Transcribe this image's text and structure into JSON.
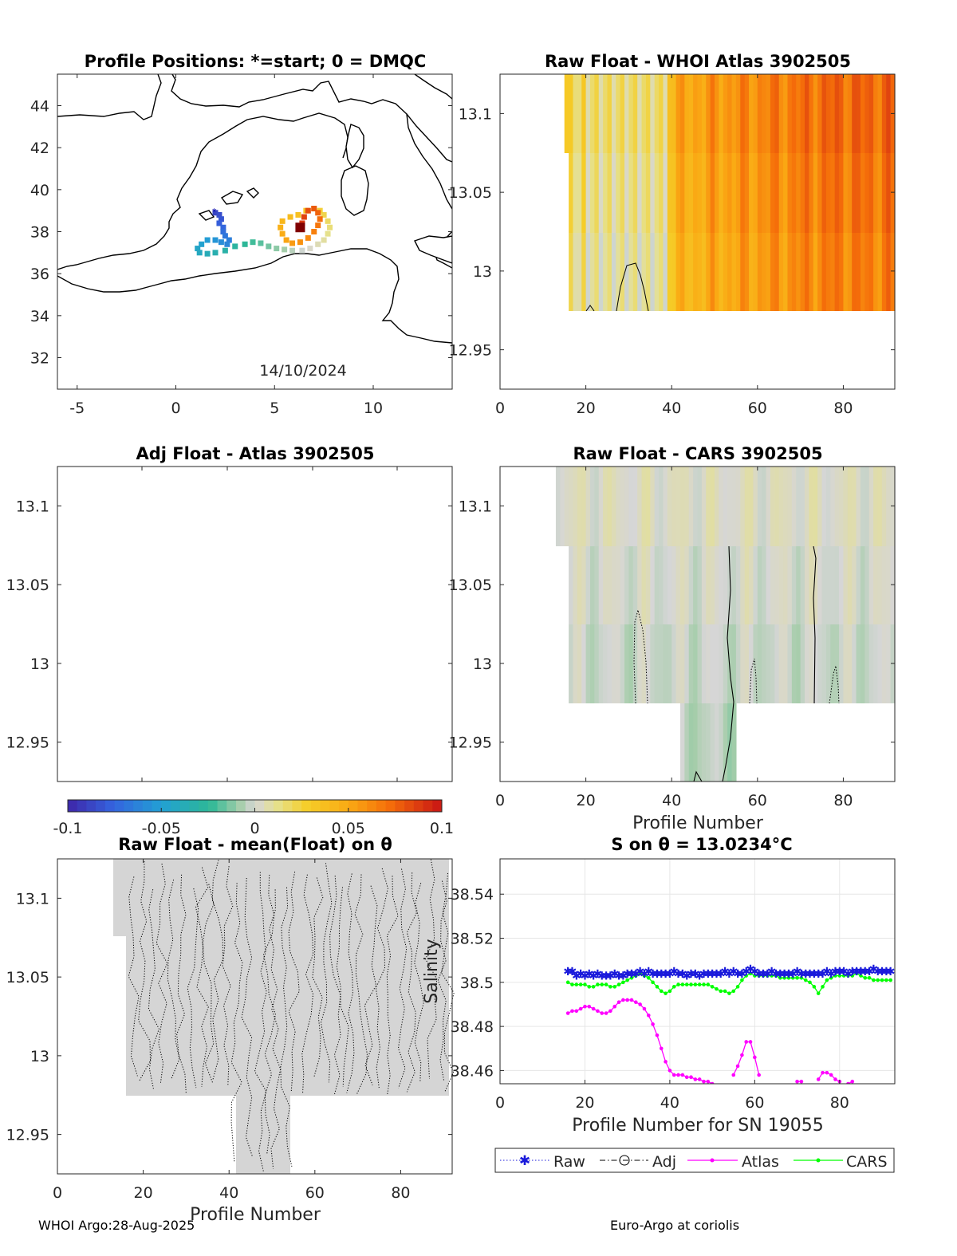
{
  "footer": {
    "left": "WHOI Argo:28-Aug-2025",
    "right": "Euro-Argo at coriolis"
  },
  "colorbar": {
    "ticks": [
      "-0.1",
      "-0.05",
      "0",
      "0.05",
      "0.1"
    ],
    "range": [
      -0.1,
      0.1
    ]
  },
  "colors": {
    "raw": "#1a1adb",
    "atlas": "#ff00ff",
    "cars": "#00ff00",
    "adj": "#000000",
    "grid": "#e6e6e6",
    "fill_grey": "#d5d5d5"
  },
  "chart_data": [
    {
      "id": "map",
      "type": "scatter",
      "title": "Profile Positions: *=start; 0 = DMQC",
      "xlim": [
        -6,
        14
      ],
      "ylim": [
        30.5,
        45.5
      ],
      "xticks": [
        "-5",
        "0",
        "5",
        "10"
      ],
      "yticks": [
        "32",
        "34",
        "36",
        "38",
        "40",
        "42",
        "44"
      ],
      "annotation": "14/10/2024",
      "track": [
        [
          2.0,
          38.9
        ],
        [
          2.2,
          38.8
        ],
        [
          2.3,
          38.6
        ],
        [
          2.2,
          38.4
        ],
        [
          2.4,
          38.2
        ],
        [
          2.4,
          38.0
        ],
        [
          2.5,
          37.8
        ],
        [
          2.7,
          37.6
        ],
        [
          2.6,
          37.4
        ],
        [
          2.3,
          37.5
        ],
        [
          2.0,
          37.6
        ],
        [
          1.6,
          37.6
        ],
        [
          1.3,
          37.4
        ],
        [
          1.1,
          37.2
        ],
        [
          1.2,
          37.0
        ],
        [
          1.6,
          36.95
        ],
        [
          2.0,
          37.0
        ],
        [
          2.5,
          37.1
        ],
        [
          3.0,
          37.3
        ],
        [
          3.5,
          37.4
        ],
        [
          3.9,
          37.5
        ],
        [
          4.3,
          37.45
        ],
        [
          4.7,
          37.3
        ],
        [
          5.1,
          37.2
        ],
        [
          5.5,
          37.15
        ],
        [
          5.9,
          37.1
        ],
        [
          6.4,
          37.1
        ],
        [
          6.8,
          37.2
        ],
        [
          7.2,
          37.4
        ],
        [
          7.5,
          37.6
        ],
        [
          7.7,
          37.9
        ],
        [
          7.8,
          38.2
        ],
        [
          7.7,
          38.5
        ],
        [
          7.5,
          38.8
        ],
        [
          7.3,
          39.0
        ],
        [
          7.0,
          39.1
        ],
        [
          6.6,
          39.0
        ],
        [
          6.2,
          38.8
        ],
        [
          5.8,
          38.7
        ],
        [
          5.4,
          38.5
        ],
        [
          5.3,
          38.2
        ],
        [
          5.4,
          37.9
        ],
        [
          5.6,
          37.6
        ],
        [
          5.9,
          37.45
        ],
        [
          6.3,
          37.5
        ],
        [
          6.7,
          37.7
        ],
        [
          7.0,
          38.0
        ],
        [
          7.2,
          38.3
        ],
        [
          7.3,
          38.6
        ],
        [
          7.2,
          38.9
        ],
        [
          7.0,
          39.1
        ],
        [
          6.7,
          39.0
        ],
        [
          6.5,
          38.7
        ],
        [
          6.4,
          38.4
        ],
        [
          6.3,
          38.2
        ]
      ],
      "last_position": [
        6.3,
        38.2
      ]
    },
    {
      "id": "whoi",
      "type": "heatmap",
      "title": "Raw Float - WHOI Atlas  3902505",
      "xlim": [
        0,
        92
      ],
      "ylim": [
        12.925,
        13.125
      ],
      "xticks": [
        "0",
        "20",
        "40",
        "60",
        "80"
      ],
      "yticks": [
        "12.95",
        "13",
        "13.05",
        "13.1"
      ],
      "profiles": [
        15,
        92
      ],
      "value_trend": [
        0.02,
        0.03,
        0.05,
        0.06,
        0.07,
        0.07
      ],
      "contour_value": 0.01
    },
    {
      "id": "adj",
      "type": "heatmap",
      "title": "Adj Float - Atlas  3902505",
      "xlim": [
        0,
        92
      ],
      "ylim": [
        12.925,
        13.125
      ],
      "yticks": [
        "12.95",
        "13",
        "13.05",
        "13.1"
      ]
    },
    {
      "id": "cars",
      "type": "heatmap",
      "title": "Raw Float - CARS  3902505",
      "xlabel": "Profile Number",
      "xlim": [
        0,
        92
      ],
      "ylim": [
        12.925,
        13.125
      ],
      "xticks": [
        "0",
        "20",
        "40",
        "60",
        "80"
      ],
      "yticks": [
        "12.95",
        "13",
        "13.05",
        "13.1"
      ],
      "value_range": [
        -0.005,
        0.01
      ]
    },
    {
      "id": "mean",
      "type": "heatmap",
      "title": "Raw Float - mean(Float) on θ",
      "xlabel": "Profile Number",
      "xlim": [
        0,
        92
      ],
      "ylim": [
        12.925,
        13.125
      ],
      "xticks": [
        "0",
        "20",
        "40",
        "60",
        "80"
      ],
      "yticks": [
        "12.95",
        "13",
        "13.05",
        "13.1"
      ]
    },
    {
      "id": "salinity",
      "type": "line",
      "title": "S on θ = 13.0234°C",
      "xlabel": "Profile Number for SN 19055",
      "ylabel": "Salinity",
      "xlim": [
        0,
        93
      ],
      "ylim": [
        38.454,
        38.556
      ],
      "xticks": [
        "0",
        "20",
        "40",
        "60",
        "80"
      ],
      "yticks": [
        "38.46",
        "38.48",
        "38.5",
        "38.52",
        "38.54"
      ],
      "legend": [
        "Raw",
        "Adj",
        "Atlas",
        "CARS"
      ],
      "series": [
        {
          "name": "Raw",
          "x": [
            16,
            17,
            18,
            19,
            20,
            21,
            22,
            23,
            24,
            25,
            26,
            27,
            28,
            29,
            30,
            31,
            32,
            33,
            34,
            35,
            36,
            37,
            38,
            39,
            40,
            41,
            42,
            43,
            44,
            45,
            46,
            47,
            48,
            49,
            50,
            51,
            52,
            53,
            54,
            55,
            56,
            57,
            58,
            59,
            60,
            61,
            62,
            63,
            64,
            65,
            66,
            67,
            68,
            69,
            70,
            71,
            72,
            73,
            74,
            75,
            76,
            77,
            78,
            79,
            80,
            81,
            82,
            83,
            84,
            85,
            86,
            87,
            88,
            89,
            90,
            91,
            92
          ],
          "values": [
            38.505,
            38.505,
            38.503,
            38.504,
            38.503,
            38.504,
            38.503,
            38.504,
            38.503,
            38.503,
            38.503,
            38.504,
            38.503,
            38.503,
            38.504,
            38.504,
            38.504,
            38.505,
            38.504,
            38.505,
            38.504,
            38.504,
            38.504,
            38.504,
            38.504,
            38.505,
            38.504,
            38.504,
            38.503,
            38.504,
            38.504,
            38.503,
            38.504,
            38.504,
            38.504,
            38.504,
            38.504,
            38.505,
            38.504,
            38.505,
            38.504,
            38.504,
            38.505,
            38.506,
            38.505,
            38.504,
            38.504,
            38.504,
            38.505,
            38.504,
            38.504,
            38.504,
            38.504,
            38.504,
            38.505,
            38.504,
            38.504,
            38.504,
            38.504,
            38.504,
            38.504,
            38.505,
            38.504,
            38.505,
            38.505,
            38.505,
            38.504,
            38.505,
            38.505,
            38.505,
            38.505,
            38.505,
            38.506,
            38.505,
            38.505,
            38.505,
            38.505
          ]
        },
        {
          "name": "Atlas",
          "segments": [
            {
              "x": [
                16,
                17,
                18,
                19,
                20,
                21,
                22,
                23,
                24,
                25,
                26,
                27,
                28,
                29,
                30,
                31,
                32,
                33,
                34,
                35,
                36,
                37,
                38,
                39,
                40,
                41,
                42,
                43,
                44,
                45,
                46,
                47,
                48,
                49,
                50
              ],
              "values": [
                38.486,
                38.487,
                38.487,
                38.488,
                38.489,
                38.489,
                38.488,
                38.487,
                38.486,
                38.486,
                38.487,
                38.489,
                38.491,
                38.492,
                38.492,
                38.492,
                38.491,
                38.49,
                38.488,
                38.485,
                38.481,
                38.476,
                38.47,
                38.464,
                38.46,
                38.458,
                38.458,
                38.458,
                38.457,
                38.457,
                38.456,
                38.456,
                38.455,
                38.455,
                38.454
              ]
            },
            {
              "x": [
                55,
                56,
                57,
                58,
                59,
                60,
                61
              ],
              "values": [
                38.458,
                38.462,
                38.467,
                38.473,
                38.473,
                38.466,
                38.458
              ]
            },
            {
              "x": [
                70,
                71
              ],
              "values": [
                38.455,
                38.455
              ]
            },
            {
              "x": [
                75,
                76,
                77,
                78,
                79,
                80
              ],
              "values": [
                38.456,
                38.459,
                38.459,
                38.458,
                38.456,
                38.455
              ]
            },
            {
              "x": [
                82,
                83
              ],
              "values": [
                38.454,
                38.455
              ]
            }
          ]
        },
        {
          "name": "CARS",
          "x": [
            16,
            17,
            18,
            19,
            20,
            21,
            22,
            23,
            24,
            25,
            26,
            27,
            28,
            29,
            30,
            31,
            32,
            33,
            34,
            35,
            36,
            37,
            38,
            39,
            40,
            41,
            42,
            43,
            44,
            45,
            46,
            47,
            48,
            49,
            50,
            51,
            52,
            53,
            54,
            55,
            56,
            57,
            58,
            59,
            60,
            61,
            62,
            63,
            64,
            65,
            66,
            67,
            68,
            69,
            70,
            71,
            72,
            73,
            74,
            75,
            76,
            77,
            78,
            79,
            80,
            81,
            82,
            83,
            84,
            85,
            86,
            87,
            88,
            89,
            90,
            91,
            92
          ],
          "values": [
            38.5,
            38.499,
            38.499,
            38.499,
            38.499,
            38.498,
            38.498,
            38.499,
            38.499,
            38.499,
            38.498,
            38.498,
            38.499,
            38.5,
            38.501,
            38.502,
            38.503,
            38.504,
            38.503,
            38.502,
            38.5,
            38.498,
            38.496,
            38.495,
            38.496,
            38.498,
            38.499,
            38.499,
            38.499,
            38.499,
            38.499,
            38.499,
            38.499,
            38.499,
            38.498,
            38.497,
            38.496,
            38.496,
            38.495,
            38.496,
            38.498,
            38.501,
            38.503,
            38.504,
            38.503,
            38.503,
            38.503,
            38.503,
            38.503,
            38.503,
            38.502,
            38.502,
            38.502,
            38.502,
            38.502,
            38.502,
            38.501,
            38.5,
            38.498,
            38.495,
            38.498,
            38.501,
            38.502,
            38.503,
            38.503,
            38.503,
            38.503,
            38.503,
            38.504,
            38.503,
            38.502,
            38.502,
            38.501,
            38.501,
            38.501,
            38.501,
            38.501
          ]
        }
      ]
    }
  ]
}
